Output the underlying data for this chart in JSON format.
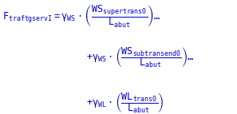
{
  "formula_color": "#0000cc",
  "background_color": "#ffffff",
  "figsize": [
    2.97,
    1.43
  ],
  "dpi": 100,
  "line1_lhs": "F_\\mathregular{traftgservI}",
  "line1_rhs": "= \\gamma_\\mathregular{WS}\\cdot\\left(\\dfrac{\\mathregular{WS}_\\mathregular{supertrans0}}{\\mathregular{L}_\\mathregular{abut}}\\right)\\ldots",
  "line2": "+ \\gamma_\\mathregular{WS}\\cdot\\left(\\dfrac{\\mathregular{WS}_\\mathregular{subtransend0}}{\\mathregular{L}_\\mathregular{abut}}\\right)\\ldots",
  "line3": "+ \\gamma_\\mathregular{WL}\\cdot\\left(\\dfrac{\\mathregular{WL}_\\mathregular{trans0}}{\\mathregular{L}_\\mathregular{abut}}\\right)",
  "fontsize": 8.5
}
